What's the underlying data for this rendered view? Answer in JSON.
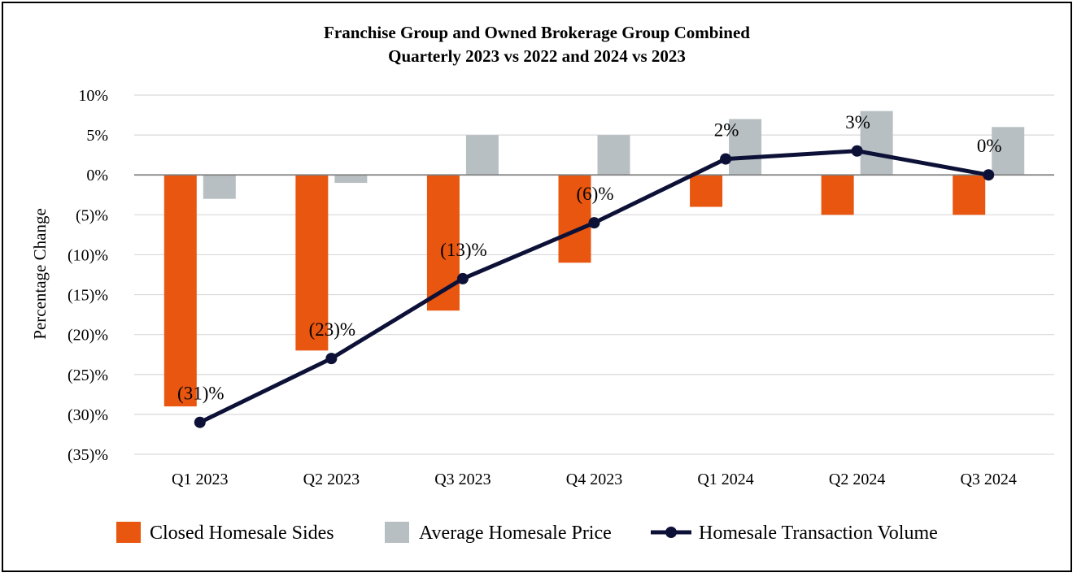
{
  "chart_data": {
    "type": "bar",
    "title": "Franchise Group and Owned Brokerage Group Combined",
    "subtitle": "Quarterly 2023 vs 2022 and 2024 vs 2023",
    "ylabel": "Percentage Change",
    "xlabel": "",
    "ylim": [
      -35,
      10
    ],
    "yticks": [
      10,
      5,
      0,
      -5,
      -10,
      -15,
      -20,
      -25,
      -30,
      -35
    ],
    "ytick_labels": [
      "10%",
      "5%",
      "0%",
      "(5)%",
      "(10)%",
      "(15)%",
      "(20)%",
      "(25)%",
      "(30)%",
      "(35)%"
    ],
    "grid": true,
    "legend_position": "bottom",
    "categories": [
      "Q1 2023",
      "Q2 2023",
      "Q3 2023",
      "Q4 2023",
      "Q1 2024",
      "Q2 2024",
      "Q3 2024"
    ],
    "series": [
      {
        "name": "Closed Homesale Sides",
        "type": "bar",
        "color": "#e8560f",
        "values": [
          -29,
          -22,
          -17,
          -11,
          -4,
          -5,
          -5
        ]
      },
      {
        "name": "Average Homesale Price",
        "type": "bar",
        "color": "#b8bfc2",
        "values": [
          -3,
          -1,
          5,
          5,
          7,
          8,
          6
        ]
      },
      {
        "name": "Homesale Transaction Volume",
        "type": "line",
        "color": "#0d1137",
        "values": [
          -31,
          -23,
          -13,
          -6,
          2,
          3,
          0
        ],
        "data_labels": [
          "(31)%",
          "(23)%",
          "(13)%",
          "(6)%",
          "2%",
          "3%",
          "0%"
        ]
      }
    ]
  }
}
